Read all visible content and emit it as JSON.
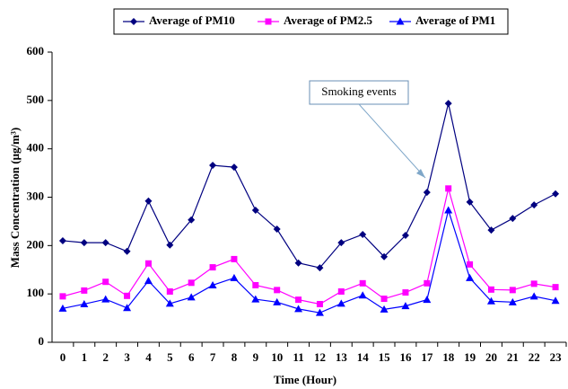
{
  "chart_data": {
    "type": "line",
    "x_label": "Time (Hour)",
    "y_label": "Mass Concentration (μg/m³)",
    "categories": [
      "0",
      "1",
      "2",
      "3",
      "4",
      "5",
      "6",
      "7",
      "8",
      "9",
      "10",
      "11",
      "12",
      "13",
      "14",
      "15",
      "16",
      "17",
      "18",
      "19",
      "20",
      "21",
      "22",
      "23"
    ],
    "series": [
      {
        "name": "Average of PM10",
        "color": "#000080",
        "marker": "diamond",
        "values": [
          210,
          206,
          206,
          188,
          292,
          201,
          253,
          366,
          362,
          273,
          234,
          164,
          154,
          206,
          223,
          177,
          221,
          310,
          494,
          290,
          232,
          256,
          284,
          307
        ]
      },
      {
        "name": "Average of PM2.5",
        "color": "#ff00ff",
        "marker": "square",
        "values": [
          95,
          107,
          125,
          96,
          163,
          105,
          123,
          155,
          172,
          118,
          108,
          88,
          79,
          105,
          122,
          90,
          103,
          122,
          318,
          161,
          109,
          108,
          121,
          114
        ]
      },
      {
        "name": "Average of PM1",
        "color": "#0000ff",
        "marker": "triangle",
        "values": [
          70,
          79,
          89,
          71,
          127,
          80,
          93,
          118,
          133,
          89,
          83,
          69,
          61,
          80,
          97,
          68,
          75,
          88,
          273,
          133,
          85,
          83,
          95,
          86
        ]
      }
    ],
    "ylim": [
      0,
      600
    ],
    "yticks": [
      0,
      100,
      200,
      300,
      400,
      500,
      600
    ],
    "grid": false,
    "legend": "top",
    "annotation": "Smoking events"
  }
}
